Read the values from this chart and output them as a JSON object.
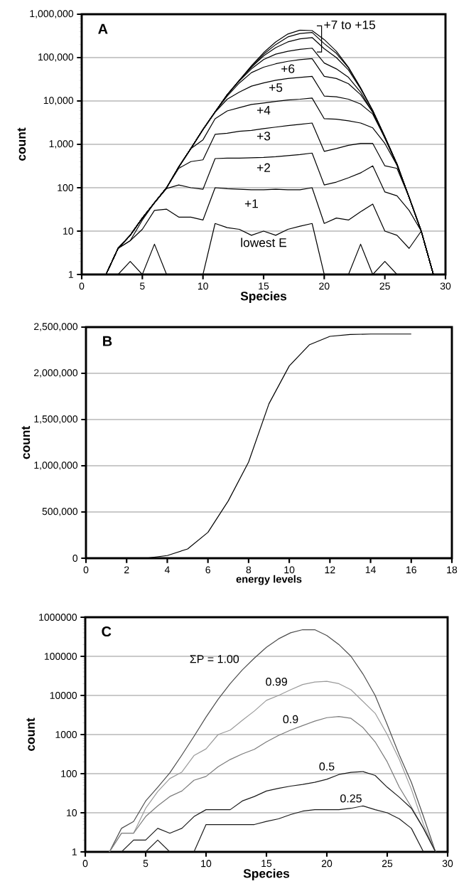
{
  "chart_data": [
    {
      "type": "line",
      "xlabel": "Species",
      "ylabel": "count",
      "log": "y",
      "grid": "y",
      "x": [
        2,
        3,
        4,
        5,
        6,
        7,
        8,
        9,
        10,
        11,
        12,
        13,
        14,
        15,
        16,
        17,
        18,
        19,
        20,
        21,
        22,
        23,
        24,
        25,
        26,
        27,
        28,
        29
      ],
      "xlim": [
        0,
        30
      ],
      "xticks": [
        0,
        5,
        10,
        15,
        20,
        25,
        30
      ],
      "ylim": [
        1,
        1000000
      ],
      "yticks": [
        1,
        10,
        100,
        {
          "value": 1000,
          "label": "1,000"
        },
        {
          "value": 10000,
          "label": "10,000"
        },
        {
          "value": 100000,
          "label": "100,000"
        },
        {
          "value": 1000000,
          "label": "1,000,000"
        }
      ],
      "series": [
        {
          "color": "#000000",
          "values": [
            1,
            4,
            8,
            20,
            45,
            100,
            300,
            800,
            2200,
            5600,
            14000,
            30000,
            65000,
            130000,
            230000,
            350000,
            430000,
            420000,
            260000,
            140000,
            60000,
            20000,
            6000,
            1500,
            350,
            60,
            10,
            1
          ]
        },
        {
          "color": "#000000",
          "values": [
            1,
            4,
            8,
            20,
            45,
            100,
            300,
            800,
            2200,
            5600,
            14000,
            30000,
            62000,
            120000,
            200000,
            300000,
            360000,
            380000,
            210000,
            125000,
            58000,
            20000,
            6000,
            1500,
            350,
            60,
            10,
            1
          ]
        },
        {
          "color": "#000000",
          "values": [
            1,
            4,
            8,
            20,
            45,
            100,
            300,
            800,
            2200,
            5600,
            14000,
            30000,
            60000,
            110000,
            170000,
            230000,
            270000,
            290000,
            160000,
            100000,
            52000,
            19000,
            6000,
            1500,
            350,
            60,
            10,
            1
          ]
        },
        {
          "color": "#000000",
          "values": [
            1,
            4,
            8,
            20,
            45,
            100,
            300,
            800,
            2200,
            5600,
            14000,
            29000,
            55000,
            90000,
            120000,
            140000,
            155000,
            165000,
            75000,
            55000,
            35000,
            16000,
            5500,
            1400,
            350,
            60,
            10,
            1
          ]
        },
        {
          "name": "+6",
          "color": "#000000",
          "values": [
            1,
            4,
            8,
            20,
            45,
            100,
            300,
            800,
            2200,
            5600,
            13000,
            26000,
            45000,
            60000,
            72000,
            82000,
            90000,
            95000,
            37000,
            33000,
            25000,
            14000,
            5500,
            1400,
            350,
            60,
            10,
            1
          ]
        },
        {
          "name": "+5",
          "color": "#000000",
          "values": [
            1,
            4,
            8,
            20,
            45,
            100,
            300,
            800,
            2200,
            5500,
            11000,
            16000,
            22000,
            26000,
            30000,
            33000,
            35000,
            37000,
            13000,
            12500,
            11000,
            8500,
            5000,
            1400,
            330,
            60,
            10,
            1
          ]
        },
        {
          "name": "+4",
          "color": "#000000",
          "values": [
            1,
            4,
            8,
            20,
            45,
            100,
            300,
            800,
            1270,
            3900,
            5900,
            7000,
            8300,
            9000,
            9800,
            10500,
            11000,
            11700,
            3900,
            3800,
            3500,
            3100,
            2400,
            1050,
            330,
            60,
            10,
            1
          ]
        },
        {
          "name": "+3",
          "color": "#000000",
          "values": [
            1,
            4,
            8,
            20,
            45,
            100,
            280,
            400,
            440,
            1700,
            1800,
            2000,
            2100,
            2300,
            2500,
            2700,
            2900,
            3100,
            690,
            800,
            950,
            1050,
            1050,
            320,
            280,
            60,
            10,
            1
          ]
        },
        {
          "name": "+2",
          "color": "#000000",
          "values": [
            1,
            4,
            6,
            18,
            45,
            96,
            116,
            100,
            92,
            470,
            480,
            480,
            490,
            500,
            520,
            550,
            580,
            630,
            116,
            135,
            170,
            220,
            320,
            80,
            65,
            30,
            10,
            1
          ]
        },
        {
          "name": "+1",
          "color": "#000000",
          "values": [
            1,
            4,
            6,
            11,
            30,
            32,
            21,
            21,
            18,
            100,
            95,
            92,
            90,
            90,
            92,
            90,
            90,
            100,
            15,
            20,
            18,
            28,
            42,
            10,
            8,
            4,
            10,
            1
          ]
        },
        {
          "name": "lowest E",
          "color": "#000000",
          "values": [
            null,
            1,
            2,
            1,
            5,
            1,
            null,
            null,
            1,
            15,
            12,
            11,
            8,
            10,
            8,
            11,
            13,
            15,
            1,
            null,
            1,
            5,
            1,
            2,
            1,
            null,
            null,
            null
          ]
        }
      ],
      "annotations": [
        "A",
        {
          "text": "+7 to +15",
          "x": 19,
          "y": 420000
        }
      ]
    },
    {
      "type": "line",
      "xlabel": "energy levels",
      "ylabel": "count",
      "grid": "y",
      "x": [
        3,
        4,
        5,
        6,
        7,
        8,
        9,
        10,
        11,
        12,
        13,
        14,
        15,
        16
      ],
      "xlim": [
        0,
        18
      ],
      "xticks": [
        0,
        2,
        4,
        6,
        8,
        10,
        12,
        14,
        16,
        18
      ],
      "ylim": [
        0,
        2500000
      ],
      "yticks": [
        0,
        {
          "value": 500000,
          "label": "500,000"
        },
        {
          "value": 1000000,
          "label": "1,000,000"
        },
        {
          "value": 1500000,
          "label": "1,500,000"
        },
        {
          "value": 2000000,
          "label": "2,000,000"
        },
        {
          "value": 2500000,
          "label": "2,500,000"
        }
      ],
      "series": [
        {
          "color": "#000000",
          "values": [
            2000,
            29000,
            100000,
            280000,
            620000,
            1040000,
            1670000,
            2080000,
            2310000,
            2400000,
            2420000,
            2425000,
            2425000,
            2425000
          ]
        }
      ],
      "annotations": [
        "B"
      ]
    },
    {
      "type": "line",
      "xlabel": "Species",
      "ylabel": "count",
      "log": "y",
      "grid": "y",
      "x": [
        2,
        3,
        4,
        5,
        6,
        7,
        8,
        9,
        10,
        11,
        12,
        13,
        14,
        15,
        16,
        17,
        18,
        19,
        20,
        21,
        22,
        23,
        24,
        25,
        26,
        27,
        28,
        29
      ],
      "xlim": [
        0,
        30
      ],
      "xticks": [
        0,
        5,
        10,
        15,
        20,
        25,
        30
      ],
      "ylim": [
        1,
        1000000
      ],
      "yticks": [
        1,
        10,
        100,
        1000,
        10000,
        100000,
        1000000
      ],
      "series": [
        {
          "name": "ΣP = 1.00",
          "color": "#4d4d4d",
          "values": [
            1,
            4,
            6,
            20,
            45,
            105,
            300,
            900,
            2800,
            8000,
            20000,
            45000,
            90000,
            170000,
            280000,
            400000,
            480000,
            480000,
            340000,
            200000,
            100000,
            35000,
            10000,
            1800,
            300,
            60,
            8,
            1
          ]
        },
        {
          "name": "0.99",
          "color": "#9a9a9a",
          "values": [
            1,
            3,
            3,
            13,
            35,
            75,
            110,
            290,
            430,
            1000,
            1300,
            2300,
            4000,
            7500,
            10000,
            14000,
            19000,
            22000,
            23000,
            20000,
            14000,
            7000,
            3500,
            1000,
            230,
            40,
            5,
            1
          ]
        },
        {
          "name": "0.9",
          "color": "#7a7a7a",
          "values": [
            1,
            3,
            3,
            8,
            15,
            26,
            36,
            68,
            85,
            150,
            230,
            320,
            420,
            650,
            950,
            1300,
            1700,
            2200,
            2700,
            2900,
            2600,
            1500,
            650,
            200,
            45,
            14,
            4,
            1
          ]
        },
        {
          "name": "0.5",
          "color": "#1a1a1a",
          "values": [
            null,
            1,
            2,
            2,
            4,
            3,
            4,
            8,
            12,
            12,
            12,
            20,
            26,
            36,
            42,
            48,
            53,
            60,
            72,
            95,
            108,
            113,
            90,
            45,
            25,
            13,
            4,
            1
          ]
        },
        {
          "name": "0.25",
          "color": "#1a1a1a",
          "values": [
            null,
            null,
            null,
            1,
            2,
            1,
            null,
            1,
            5,
            5,
            5,
            5,
            5,
            6,
            7,
            9,
            11,
            12,
            12,
            12,
            13,
            15,
            12,
            10,
            7,
            4,
            1,
            null
          ]
        }
      ],
      "annotations": [
        "C"
      ]
    }
  ]
}
